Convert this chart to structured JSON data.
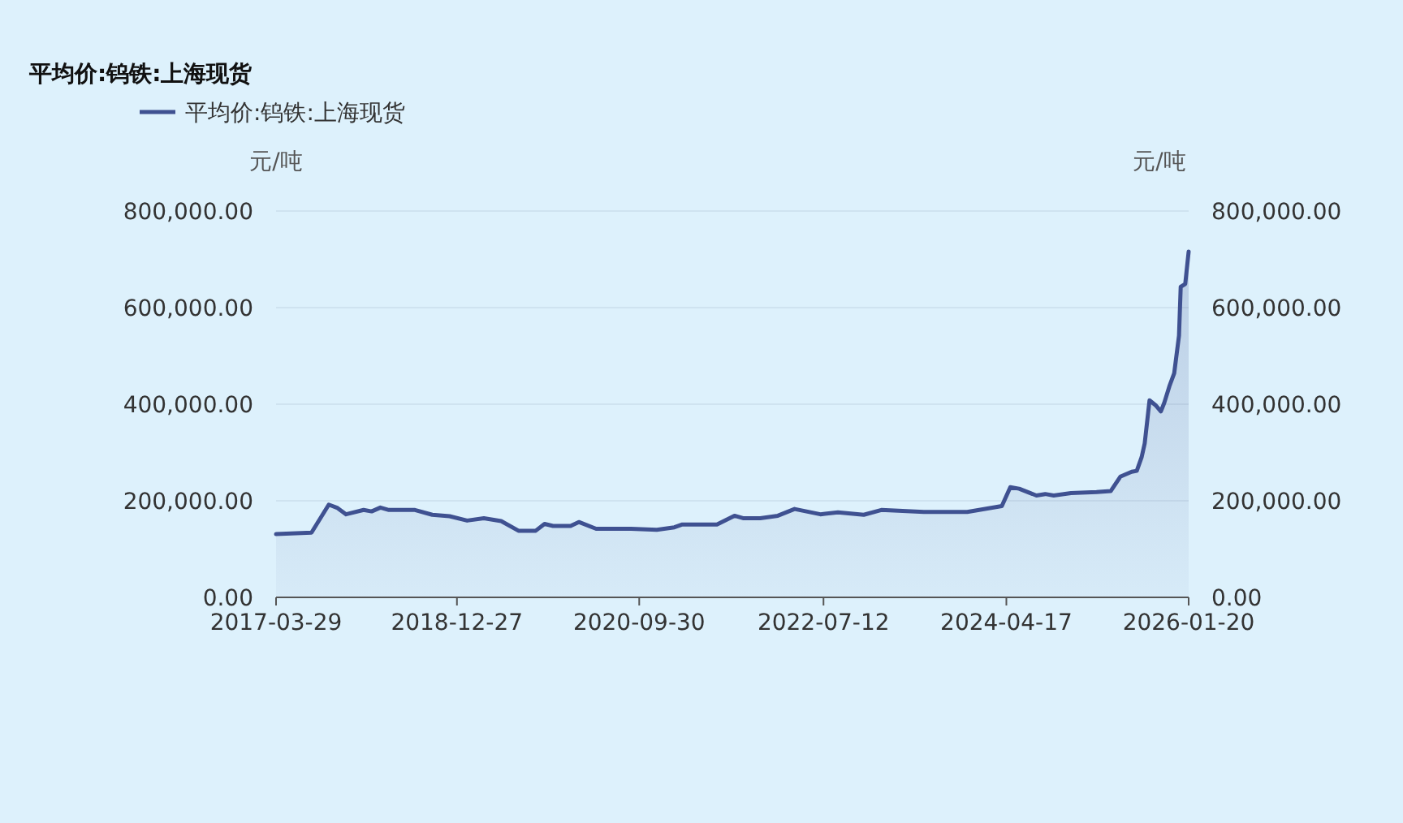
{
  "chart_data": {
    "type": "area",
    "title": "平均价:钨铁:上海现货",
    "ylabel": "元/吨",
    "y2label": "元/吨",
    "x": [
      "2017-03-29",
      "2017-08",
      "2017-10",
      "2017-11",
      "2017-12",
      "2018-02",
      "2018-03",
      "2018-04",
      "2018-05",
      "2018-08",
      "2018-10",
      "2018-12",
      "2019-02",
      "2019-04",
      "2019-06",
      "2019-08",
      "2019-10",
      "2019-11",
      "2019-12",
      "2020-02",
      "2020-03",
      "2020-05",
      "2020-09",
      "2020-12",
      "2021-02",
      "2021-03",
      "2021-06",
      "2021-07",
      "2021-09",
      "2021-10",
      "2021-12",
      "2022-02",
      "2022-04",
      "2022-07",
      "2022-09",
      "2022-12",
      "2023-02",
      "2023-07",
      "2023-12",
      "2024-04",
      "2024-05",
      "2024-06",
      "2024-08",
      "2024-09",
      "2024-10",
      "2024-12",
      "2025-03",
      "2025-04-20",
      "2025-05-24",
      "2025-07-03",
      "2025-07-21",
      "2025-08-07",
      "2025-08-18",
      "2025-09-04",
      "2025-09-27",
      "2025-10-14",
      "2025-10-26",
      "2025-11-13",
      "2025-11-30",
      "2025-12-17",
      "2025-12-23",
      "2026-01-08",
      "2026-01-20"
    ],
    "series": [
      {
        "name": "平均价:钨铁:上海现货",
        "color": "#3f5191",
        "values": [
          131000,
          134000,
          192000,
          185000,
          172000,
          181000,
          178000,
          186000,
          181000,
          181000,
          171000,
          168000,
          159000,
          164000,
          158000,
          138000,
          138000,
          152000,
          148000,
          148000,
          156000,
          142000,
          142000,
          140000,
          145000,
          151000,
          151000,
          151000,
          169000,
          164000,
          164000,
          169000,
          183000,
          172000,
          176000,
          171000,
          181000,
          177000,
          177000,
          189000,
          228000,
          225000,
          211000,
          214000,
          211000,
          216000,
          218000,
          220000,
          250000,
          260000,
          262000,
          290000,
          319000,
          408000,
          397000,
          385000,
          403000,
          437000,
          464000,
          542000,
          643000,
          649000,
          716000
        ]
      }
    ],
    "xlim": [
      "2017-03-29",
      "2026-01-20"
    ],
    "xticks": [
      {
        "value": "2017-03-29",
        "label": "2017-03-29"
      },
      {
        "value": "2018-12-27",
        "label": "2018-12-27"
      },
      {
        "value": "2020-09-30",
        "label": "2020-09-30"
      },
      {
        "value": "2022-07-12",
        "label": "2022-07-12"
      },
      {
        "value": "2024-04-17",
        "label": "2024-04-17"
      },
      {
        "value": "2026-01-20",
        "label": "2026-01-20"
      }
    ],
    "ylim": [
      0,
      800000
    ],
    "yticks": [
      {
        "value": 0,
        "label": "0.00"
      },
      {
        "value": 200000,
        "label": "200,000.00"
      },
      {
        "value": 400000,
        "label": "400,000.00"
      },
      {
        "value": 600000,
        "label": "600,000.00"
      },
      {
        "value": 800000,
        "label": "800,000.00"
      }
    ],
    "y2lim": [
      0,
      800000
    ],
    "y2ticks": [
      {
        "value": 0,
        "label": "0.00"
      },
      {
        "value": 200000,
        "label": "200,000.00"
      },
      {
        "value": 400000,
        "label": "400,000.00"
      },
      {
        "value": 600000,
        "label": "600,000.00"
      },
      {
        "value": 800000,
        "label": "800,000.00"
      }
    ],
    "grid": "y",
    "legend": "top left",
    "marker": "none",
    "line_style": "solid"
  }
}
